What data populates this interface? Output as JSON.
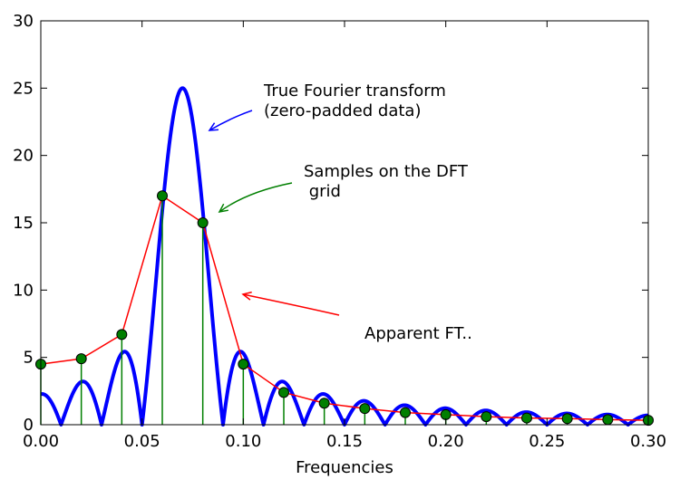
{
  "chart_data": {
    "type": "line",
    "xlabel": "Frequencies",
    "ylabel": "",
    "xlim": [
      0.0,
      0.3
    ],
    "ylim": [
      0,
      30
    ],
    "grid": false,
    "x_ticks": [
      "0.00",
      "0.05",
      "0.10",
      "0.15",
      "0.20",
      "0.25",
      "0.30"
    ],
    "y_ticks": [
      "0",
      "5",
      "10",
      "15",
      "20",
      "25",
      "30"
    ],
    "x_tick_values": [
      0.0,
      0.05,
      0.1,
      0.15,
      0.2,
      0.25,
      0.3
    ],
    "y_tick_values": [
      0,
      5,
      10,
      15,
      20,
      25,
      30
    ],
    "true_ft": {
      "peak_frequency": 0.07,
      "peak_amplitude": 25,
      "zero_spacing": 0.02,
      "color": "#0000ff"
    },
    "dft_samples": {
      "x": [
        0.0,
        0.02,
        0.04,
        0.06,
        0.08,
        0.1,
        0.12,
        0.14,
        0.16,
        0.18,
        0.2,
        0.22,
        0.24,
        0.26,
        0.28,
        0.3
      ],
      "y": [
        4.5,
        4.9,
        6.7,
        17.0,
        15.0,
        4.5,
        2.4,
        1.6,
        1.2,
        0.9,
        0.75,
        0.6,
        0.5,
        0.45,
        0.38,
        0.33
      ],
      "stem_color": "#007f00",
      "marker_color": "#007f00",
      "line_color": "#ff0000"
    },
    "annotations": [
      {
        "lines": [
          "True Fourier transform",
          "(zero-padded data)"
        ],
        "color": "#0000ff",
        "target": [
          0.083,
          21.7
        ]
      },
      {
        "lines": [
          "Samples on the DFT",
          " grid"
        ],
        "color": "#007f00",
        "target": [
          0.088,
          15.7
        ]
      },
      {
        "lines": [
          "Apparent FT.."
        ],
        "color": "#ff0000",
        "target": [
          0.099,
          9.8
        ]
      }
    ]
  }
}
